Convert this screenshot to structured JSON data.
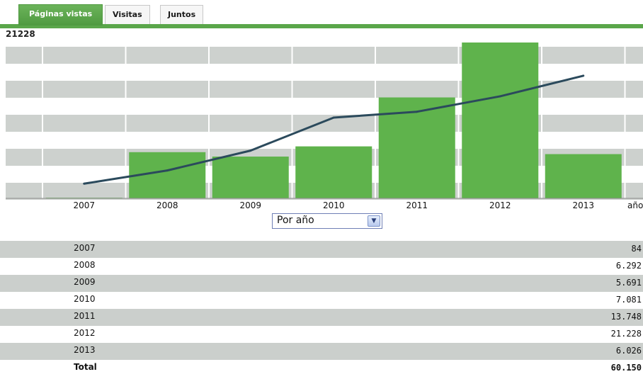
{
  "tabs": [
    {
      "label": "Páginas vistas",
      "active": true
    },
    {
      "label": "Visitas",
      "active": false
    },
    {
      "label": "Juntos",
      "active": false
    }
  ],
  "chart_max_label": "21228",
  "period_select": {
    "selected": "Por año"
  },
  "x_axis_tail": "año",
  "colors": {
    "bar": "#5fb34c",
    "line": "#2b4a5c",
    "band": "#cdd1ce",
    "tab_active": "#5aa64a"
  },
  "chart_data": {
    "type": "bar",
    "categories": [
      "2007",
      "2008",
      "2009",
      "2010",
      "2011",
      "2012",
      "2013"
    ],
    "values": [
      84,
      6292,
      5691,
      7081,
      13748,
      21228,
      6026
    ],
    "line_overlay": [
      2000,
      3800,
      6500,
      11000,
      11800,
      13900,
      16700
    ],
    "ylim": [
      0,
      21228
    ],
    "grid": true
  },
  "table": {
    "rows": [
      {
        "year": "2007",
        "value": "84"
      },
      {
        "year": "2008",
        "value": "6.292"
      },
      {
        "year": "2009",
        "value": "5.691"
      },
      {
        "year": "2010",
        "value": "7.081"
      },
      {
        "year": "2011",
        "value": "13.748"
      },
      {
        "year": "2012",
        "value": "21.228"
      },
      {
        "year": "2013",
        "value": "6.026"
      }
    ],
    "total": {
      "label": "Total",
      "value": "60.150"
    }
  }
}
